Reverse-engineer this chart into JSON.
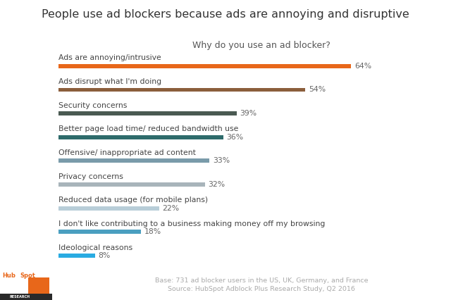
{
  "title": "People use ad blockers because ads are annoying and disruptive",
  "subtitle": "Why do you use an ad blocker?",
  "categories": [
    "Ads are annoying/intrusive",
    "Ads disrupt what I'm doing",
    "Security concerns",
    "Better page load time/ reduced bandwidth use",
    "Offensive/ inappropriate ad content",
    "Privacy concerns",
    "Reduced data usage (for mobile plans)",
    "I don't like contributing to a business making money off my browsing",
    "Ideological reasons"
  ],
  "values": [
    64,
    54,
    39,
    36,
    33,
    32,
    22,
    18,
    8
  ],
  "bar_colors": [
    "#E8671A",
    "#8B5E3C",
    "#4A5A52",
    "#2E6B6B",
    "#7A9BAA",
    "#A8B4BA",
    "#B8CDD8",
    "#4A9FC0",
    "#29ABE2"
  ],
  "footnote1": "Base: 731 ad blocker users in the US, UK, Germany, and France",
  "footnote2": "Source: HubSpot Adblock Plus Research Study, Q2 2016",
  "background_color": "#FFFFFF",
  "title_fontsize": 11.5,
  "subtitle_fontsize": 9,
  "label_fontsize": 7.8,
  "value_fontsize": 7.8,
  "footnote_fontsize": 6.8,
  "xlim": [
    0,
    75
  ]
}
